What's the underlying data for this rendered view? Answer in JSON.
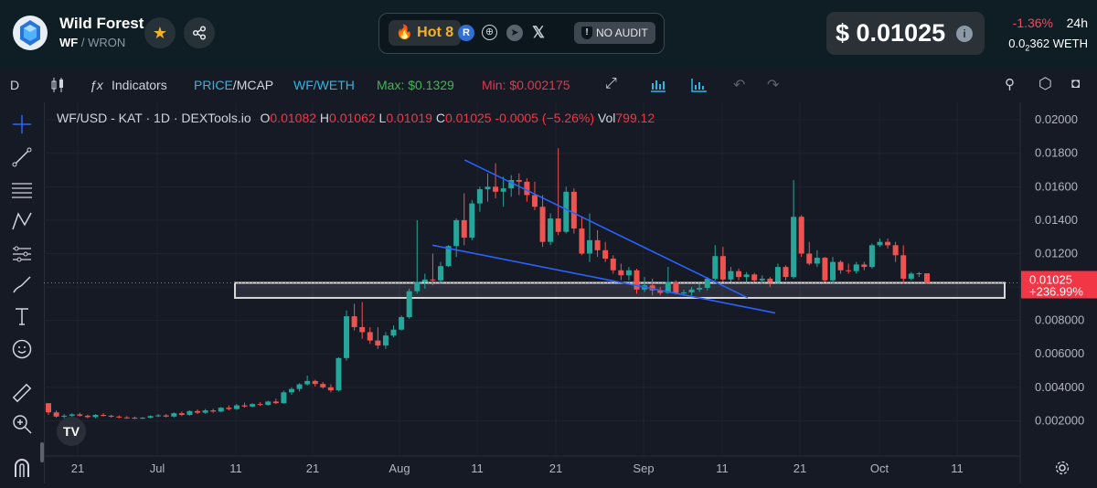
{
  "header": {
    "token_name": "Wild Forest",
    "token_symbol": "WF",
    "pair_separator": " / ",
    "quote_symbol": "WRON",
    "hot_label": "Hot 8",
    "no_audit_label": "NO AUDIT",
    "price": "$ 0.01025",
    "change": "-1.36%",
    "change_period": "24h",
    "weth_price": "0.0",
    "weth_sub": "2",
    "weth_rest": "362",
    "weth_label": "WETH",
    "colors": {
      "background": "#0f1d24",
      "negative": "#f2495e",
      "hot": "#f5b227"
    }
  },
  "toolbar": {
    "interval": "D",
    "indicators_label": "Indicators",
    "price_label": "PRICE",
    "mcap_label": "MCAP",
    "pair_label": "WF/WETH",
    "max_label": "Max: $0.1329",
    "min_label": "Min: $0.002175"
  },
  "legend": {
    "title": "WF/USD - KAT · 1D · DEXTools.io",
    "o_key": "O",
    "o_val": "0.01082",
    "h_key": "H",
    "h_val": "0.01062",
    "l_key": "L",
    "l_val": "0.01019",
    "c_key": "C",
    "c_val": "0.01025",
    "change": "-0.0005 (−5.26%)",
    "vol_key": "Vol",
    "vol_val": "799.12"
  },
  "left_tools": [
    "crosshair-icon",
    "trend-line-icon",
    "fib-icon",
    "pattern-icon",
    "prediction-icon",
    "brush-icon",
    "text-icon",
    "emoji-icon",
    "ruler-icon",
    "zoom-icon",
    "magnet-icon"
  ],
  "chart_data": {
    "type": "candlestick",
    "title": "WF/USD - KAT · 1D · DEXTools.io",
    "x_ticks": [
      "21",
      "Jul",
      "11",
      "21",
      "Aug",
      "11",
      "21",
      "Sep",
      "11",
      "21",
      "Oct",
      "11"
    ],
    "y_ticks": [
      "0.02000",
      "0.01800",
      "0.01600",
      "0.01400",
      "0.01200",
      "0.01000",
      "0.008000",
      "0.006000",
      "0.004000",
      "0.002000"
    ],
    "ylim": [
      0.0,
      0.0205
    ],
    "last_price_label": "0.01025",
    "last_price_change": "+236.99%",
    "colors": {
      "up": "#26a69a",
      "down": "#ef5350",
      "trendline": "#2962ff",
      "zone": "#d8d8d8"
    },
    "candles_ohlc": [
      [
        0.00305,
        0.00305,
        0.00235,
        0.0025
      ],
      [
        0.0025,
        0.00262,
        0.00218,
        0.00225
      ],
      [
        0.00225,
        0.0024,
        0.00215,
        0.0023
      ],
      [
        0.0023,
        0.00245,
        0.00222,
        0.00238
      ],
      [
        0.00238,
        0.00248,
        0.00225,
        0.0023
      ],
      [
        0.0023,
        0.00236,
        0.00215,
        0.00222
      ],
      [
        0.00222,
        0.0024,
        0.00215,
        0.00235
      ],
      [
        0.00235,
        0.00245,
        0.00225,
        0.0023
      ],
      [
        0.0023,
        0.00236,
        0.00218,
        0.00225
      ],
      [
        0.00225,
        0.00232,
        0.00215,
        0.0022
      ],
      [
        0.0022,
        0.00228,
        0.00212,
        0.00218
      ],
      [
        0.00218,
        0.00225,
        0.0021,
        0.00215
      ],
      [
        0.00215,
        0.00222,
        0.0021,
        0.00218
      ],
      [
        0.00218,
        0.00232,
        0.00215,
        0.00228
      ],
      [
        0.00228,
        0.0024,
        0.00222,
        0.00232
      ],
      [
        0.00232,
        0.0024,
        0.0022,
        0.00225
      ],
      [
        0.00225,
        0.0025,
        0.0022,
        0.00245
      ],
      [
        0.00245,
        0.00255,
        0.00228,
        0.00235
      ],
      [
        0.00235,
        0.00262,
        0.0023,
        0.00258
      ],
      [
        0.00258,
        0.00268,
        0.0024,
        0.00248
      ],
      [
        0.00248,
        0.0027,
        0.00242,
        0.00262
      ],
      [
        0.00262,
        0.00272,
        0.00248,
        0.00255
      ],
      [
        0.00255,
        0.00282,
        0.0025,
        0.00278
      ],
      [
        0.00278,
        0.00292,
        0.00262,
        0.0027
      ],
      [
        0.0027,
        0.003,
        0.00265,
        0.00292
      ],
      [
        0.00292,
        0.00308,
        0.00278,
        0.00285
      ],
      [
        0.00285,
        0.00305,
        0.0028,
        0.003
      ],
      [
        0.003,
        0.00312,
        0.00288,
        0.00295
      ],
      [
        0.00295,
        0.0032,
        0.0029,
        0.00315
      ],
      [
        0.00315,
        0.00332,
        0.003,
        0.00305
      ],
      [
        0.00305,
        0.0038,
        0.00302,
        0.0037
      ],
      [
        0.0037,
        0.004,
        0.00355,
        0.0039
      ],
      [
        0.0039,
        0.00425,
        0.00375,
        0.00418
      ],
      [
        0.00418,
        0.0047,
        0.0041,
        0.00438
      ],
      [
        0.00438,
        0.00445,
        0.00405,
        0.0042
      ],
      [
        0.0042,
        0.00432,
        0.00392,
        0.004
      ],
      [
        0.004,
        0.00418,
        0.0037,
        0.00382
      ],
      [
        0.00382,
        0.0058,
        0.00375,
        0.00575
      ],
      [
        0.00575,
        0.0086,
        0.0056,
        0.00825
      ],
      [
        0.00825,
        0.009,
        0.0074,
        0.0076
      ],
      [
        0.0076,
        0.0091,
        0.0069,
        0.0073
      ],
      [
        0.0073,
        0.0076,
        0.0066,
        0.0068
      ],
      [
        0.0068,
        0.0076,
        0.0063,
        0.0065
      ],
      [
        0.0065,
        0.0073,
        0.0063,
        0.0071
      ],
      [
        0.0071,
        0.0077,
        0.007,
        0.00745
      ],
      [
        0.00745,
        0.0083,
        0.0074,
        0.0082
      ],
      [
        0.0082,
        0.0099,
        0.0081,
        0.00975
      ],
      [
        0.00975,
        0.014,
        0.0096,
        0.0103
      ],
      [
        0.0103,
        0.0108,
        0.0099,
        0.01045
      ],
      [
        0.01045,
        0.012,
        0.0101,
        0.0104
      ],
      [
        0.0104,
        0.0115,
        0.0102,
        0.01125
      ],
      [
        0.01125,
        0.0125,
        0.0112,
        0.01245
      ],
      [
        0.01245,
        0.0141,
        0.0118,
        0.014
      ],
      [
        0.014,
        0.0156,
        0.0125,
        0.01295
      ],
      [
        0.01295,
        0.0152,
        0.0128,
        0.015
      ],
      [
        0.015,
        0.016,
        0.0145,
        0.01585
      ],
      [
        0.01585,
        0.0168,
        0.0151,
        0.016
      ],
      [
        0.016,
        0.0174,
        0.0153,
        0.0157
      ],
      [
        0.0157,
        0.0166,
        0.0148,
        0.0159
      ],
      [
        0.0159,
        0.0167,
        0.0154,
        0.0164
      ],
      [
        0.0164,
        0.0168,
        0.0155,
        0.0163
      ],
      [
        0.0163,
        0.0165,
        0.0151,
        0.0155
      ],
      [
        0.0155,
        0.0163,
        0.0146,
        0.0148
      ],
      [
        0.0148,
        0.0155,
        0.0124,
        0.0127
      ],
      [
        0.0127,
        0.0144,
        0.0125,
        0.0141
      ],
      [
        0.0141,
        0.0183,
        0.0131,
        0.0133
      ],
      [
        0.0133,
        0.016,
        0.0132,
        0.0157
      ],
      [
        0.0157,
        0.0159,
        0.0132,
        0.0135
      ],
      [
        0.0135,
        0.0142,
        0.0119,
        0.012
      ],
      [
        0.012,
        0.0144,
        0.0115,
        0.0128
      ],
      [
        0.0128,
        0.0134,
        0.0118,
        0.0122
      ],
      [
        0.0122,
        0.0127,
        0.0115,
        0.0117
      ],
      [
        0.0117,
        0.0119,
        0.0108,
        0.011
      ],
      [
        0.011,
        0.0114,
        0.0104,
        0.0107
      ],
      [
        0.0107,
        0.0112,
        0.0104,
        0.011
      ],
      [
        0.011,
        0.0111,
        0.0096,
        0.00985
      ],
      [
        0.00985,
        0.0106,
        0.0097,
        0.0101
      ],
      [
        0.0101,
        0.0105,
        0.0095,
        0.0098
      ],
      [
        0.0098,
        0.01,
        0.0095,
        0.00965
      ],
      [
        0.00965,
        0.0112,
        0.0096,
        0.0103
      ],
      [
        0.0103,
        0.0104,
        0.00955,
        0.00965
      ],
      [
        0.00965,
        0.00985,
        0.0095,
        0.00968
      ],
      [
        0.00968,
        0.01,
        0.0095,
        0.00985
      ],
      [
        0.00985,
        0.0102,
        0.0097,
        0.00995
      ],
      [
        0.00995,
        0.0106,
        0.0098,
        0.0105
      ],
      [
        0.0105,
        0.0125,
        0.0104,
        0.01185
      ],
      [
        0.01185,
        0.0124,
        0.0103,
        0.01045
      ],
      [
        0.01045,
        0.0112,
        0.0103,
        0.01095
      ],
      [
        0.01095,
        0.0111,
        0.0104,
        0.0106
      ],
      [
        0.0106,
        0.0109,
        0.0103,
        0.01075
      ],
      [
        0.01075,
        0.01085,
        0.0103,
        0.0104
      ],
      [
        0.0104,
        0.0107,
        0.0102,
        0.0105
      ],
      [
        0.0105,
        0.0106,
        0.01,
        0.0103
      ],
      [
        0.0103,
        0.0114,
        0.0102,
        0.0112
      ],
      [
        0.0112,
        0.0113,
        0.0104,
        0.0106
      ],
      [
        0.0106,
        0.0164,
        0.0105,
        0.0142
      ],
      [
        0.0142,
        0.0143,
        0.0118,
        0.012
      ],
      [
        0.012,
        0.0127,
        0.0113,
        0.0114
      ],
      [
        0.0114,
        0.0122,
        0.0112,
        0.01175
      ],
      [
        0.01175,
        0.0118,
        0.0103,
        0.0104
      ],
      [
        0.0104,
        0.0118,
        0.0102,
        0.0115
      ],
      [
        0.0115,
        0.0116,
        0.0108,
        0.011
      ],
      [
        0.011,
        0.0114,
        0.0108,
        0.01095
      ],
      [
        0.01095,
        0.0115,
        0.0108,
        0.01135
      ],
      [
        0.01135,
        0.0115,
        0.011,
        0.0112
      ],
      [
        0.0112,
        0.0126,
        0.0111,
        0.0125
      ],
      [
        0.0125,
        0.0129,
        0.0124,
        0.0127
      ],
      [
        0.0127,
        0.0129,
        0.0123,
        0.0125
      ],
      [
        0.0125,
        0.0127,
        0.0115,
        0.0119
      ],
      [
        0.0119,
        0.0125,
        0.0102,
        0.0105
      ],
      [
        0.0105,
        0.0109,
        0.0104,
        0.0108
      ],
      [
        0.0108,
        0.0109,
        0.0106,
        0.01082
      ],
      [
        0.01082,
        0.01062,
        0.01019,
        0.01025
      ]
    ],
    "trendlines": [
      {
        "x1": 0.431,
        "y1": 0.0176,
        "x2": 0.721,
        "y2": 0.00935
      },
      {
        "x1": 0.398,
        "y1": 0.0125,
        "x2": 0.749,
        "y2": 0.00845
      }
    ],
    "zone": {
      "x1": 0.186,
      "x2": 1.0,
      "y_low": 0.00935,
      "y_high": 0.01025
    }
  }
}
